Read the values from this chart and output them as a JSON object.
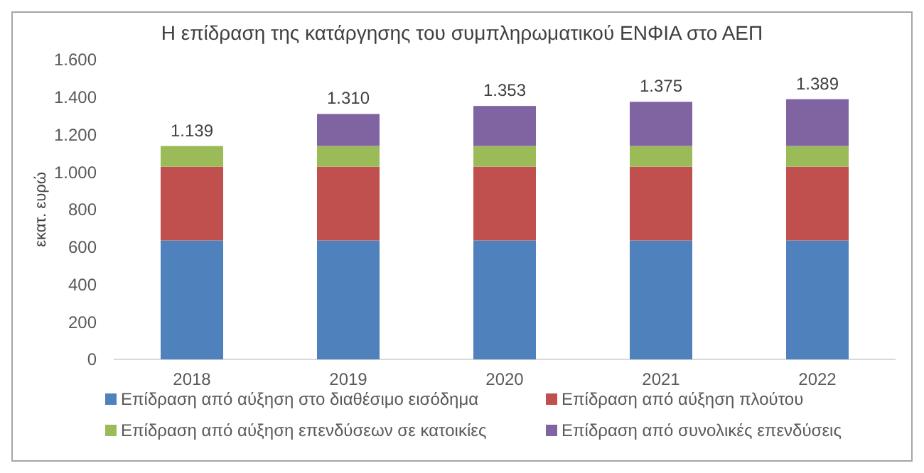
{
  "chart_data": {
    "type": "bar",
    "stacked": true,
    "title": "Η επίδραση της κατάργησης του συμπληρωματικού ΕΝΦΙΑ στο ΑΕΠ",
    "ylabel": "εκατ. ευρώ",
    "categories": [
      "2018",
      "2019",
      "2020",
      "2021",
      "2022"
    ],
    "series": [
      {
        "name": "Επίδραση από αύξηση στο διαθέσιμο εισόδημα",
        "color": "#4f81bd",
        "values": [
          635,
          635,
          635,
          635,
          635
        ]
      },
      {
        "name": "Επίδραση από αύξηση πλούτου",
        "color": "#c0504d",
        "values": [
          394,
          394,
          394,
          394,
          394
        ]
      },
      {
        "name": "Επίδραση από αύξηση επενδύσεων σε κατοικίες",
        "color": "#9bbb59",
        "values": [
          110,
          110,
          110,
          110,
          110
        ]
      },
      {
        "name": "Επίδραση από συνολικές επενδύσεις",
        "color": "#8064a2",
        "values": [
          0,
          171,
          214,
          236,
          250
        ]
      }
    ],
    "totals": [
      "1.139",
      "1.310",
      "1.353",
      "1.375",
      "1.389"
    ],
    "ylim": [
      0,
      1600
    ],
    "yticks": [
      {
        "value": 0,
        "label": "0"
      },
      {
        "value": 200,
        "label": "200"
      },
      {
        "value": 400,
        "label": "400"
      },
      {
        "value": 600,
        "label": "600"
      },
      {
        "value": 800,
        "label": "800"
      },
      {
        "value": 1000,
        "label": "1.000"
      },
      {
        "value": 1200,
        "label": "1.200"
      },
      {
        "value": 1400,
        "label": "1.400"
      },
      {
        "value": 1600,
        "label": "1.600"
      }
    ],
    "grid": false,
    "legend": "bottom"
  }
}
